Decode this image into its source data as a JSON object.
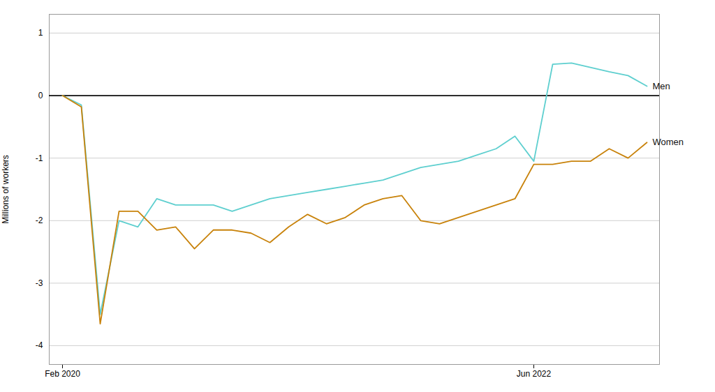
{
  "chart_data": {
    "type": "line",
    "ylabel": "Millions of workers",
    "categories": [
      "Feb 2020",
      null,
      null,
      null,
      null,
      null,
      null,
      null,
      null,
      null,
      null,
      null,
      null,
      null,
      null,
      null,
      null,
      null,
      null,
      null,
      null,
      null,
      null,
      null,
      null,
      "Jun 2022",
      null,
      null,
      null,
      null,
      null,
      null
    ],
    "series": [
      {
        "name": "Men",
        "color": "#5ecfcf",
        "values": [
          0,
          -0.15,
          -3.5,
          -2.0,
          -2.1,
          -1.65,
          -1.75,
          -1.75,
          -1.75,
          -1.85,
          -1.75,
          -1.65,
          -1.6,
          -1.55,
          -1.5,
          -1.45,
          -1.4,
          -1.35,
          -1.25,
          -1.15,
          -1.1,
          -1.05,
          -0.95,
          -0.85,
          -0.65,
          -1.05,
          0.5,
          0.52,
          0.45,
          0.38,
          0.32,
          0.15
        ]
      },
      {
        "name": "Women",
        "color": "#c8820a",
        "values": [
          0,
          -0.18,
          -3.65,
          -1.85,
          -1.85,
          -2.15,
          -2.1,
          -2.45,
          -2.15,
          -2.15,
          -2.2,
          -2.35,
          -2.1,
          -1.9,
          -2.05,
          -1.95,
          -1.75,
          -1.65,
          -1.6,
          -2.0,
          -2.05,
          -1.95,
          -1.85,
          -1.75,
          -1.65,
          -1.1,
          -1.1,
          -1.05,
          -1.05,
          -0.85,
          -1.0,
          -0.75
        ]
      }
    ],
    "ylim": [
      -4.3,
      1.3
    ],
    "yticks": [
      -4,
      -3,
      -2,
      -1,
      0,
      1
    ],
    "grid": true
  }
}
